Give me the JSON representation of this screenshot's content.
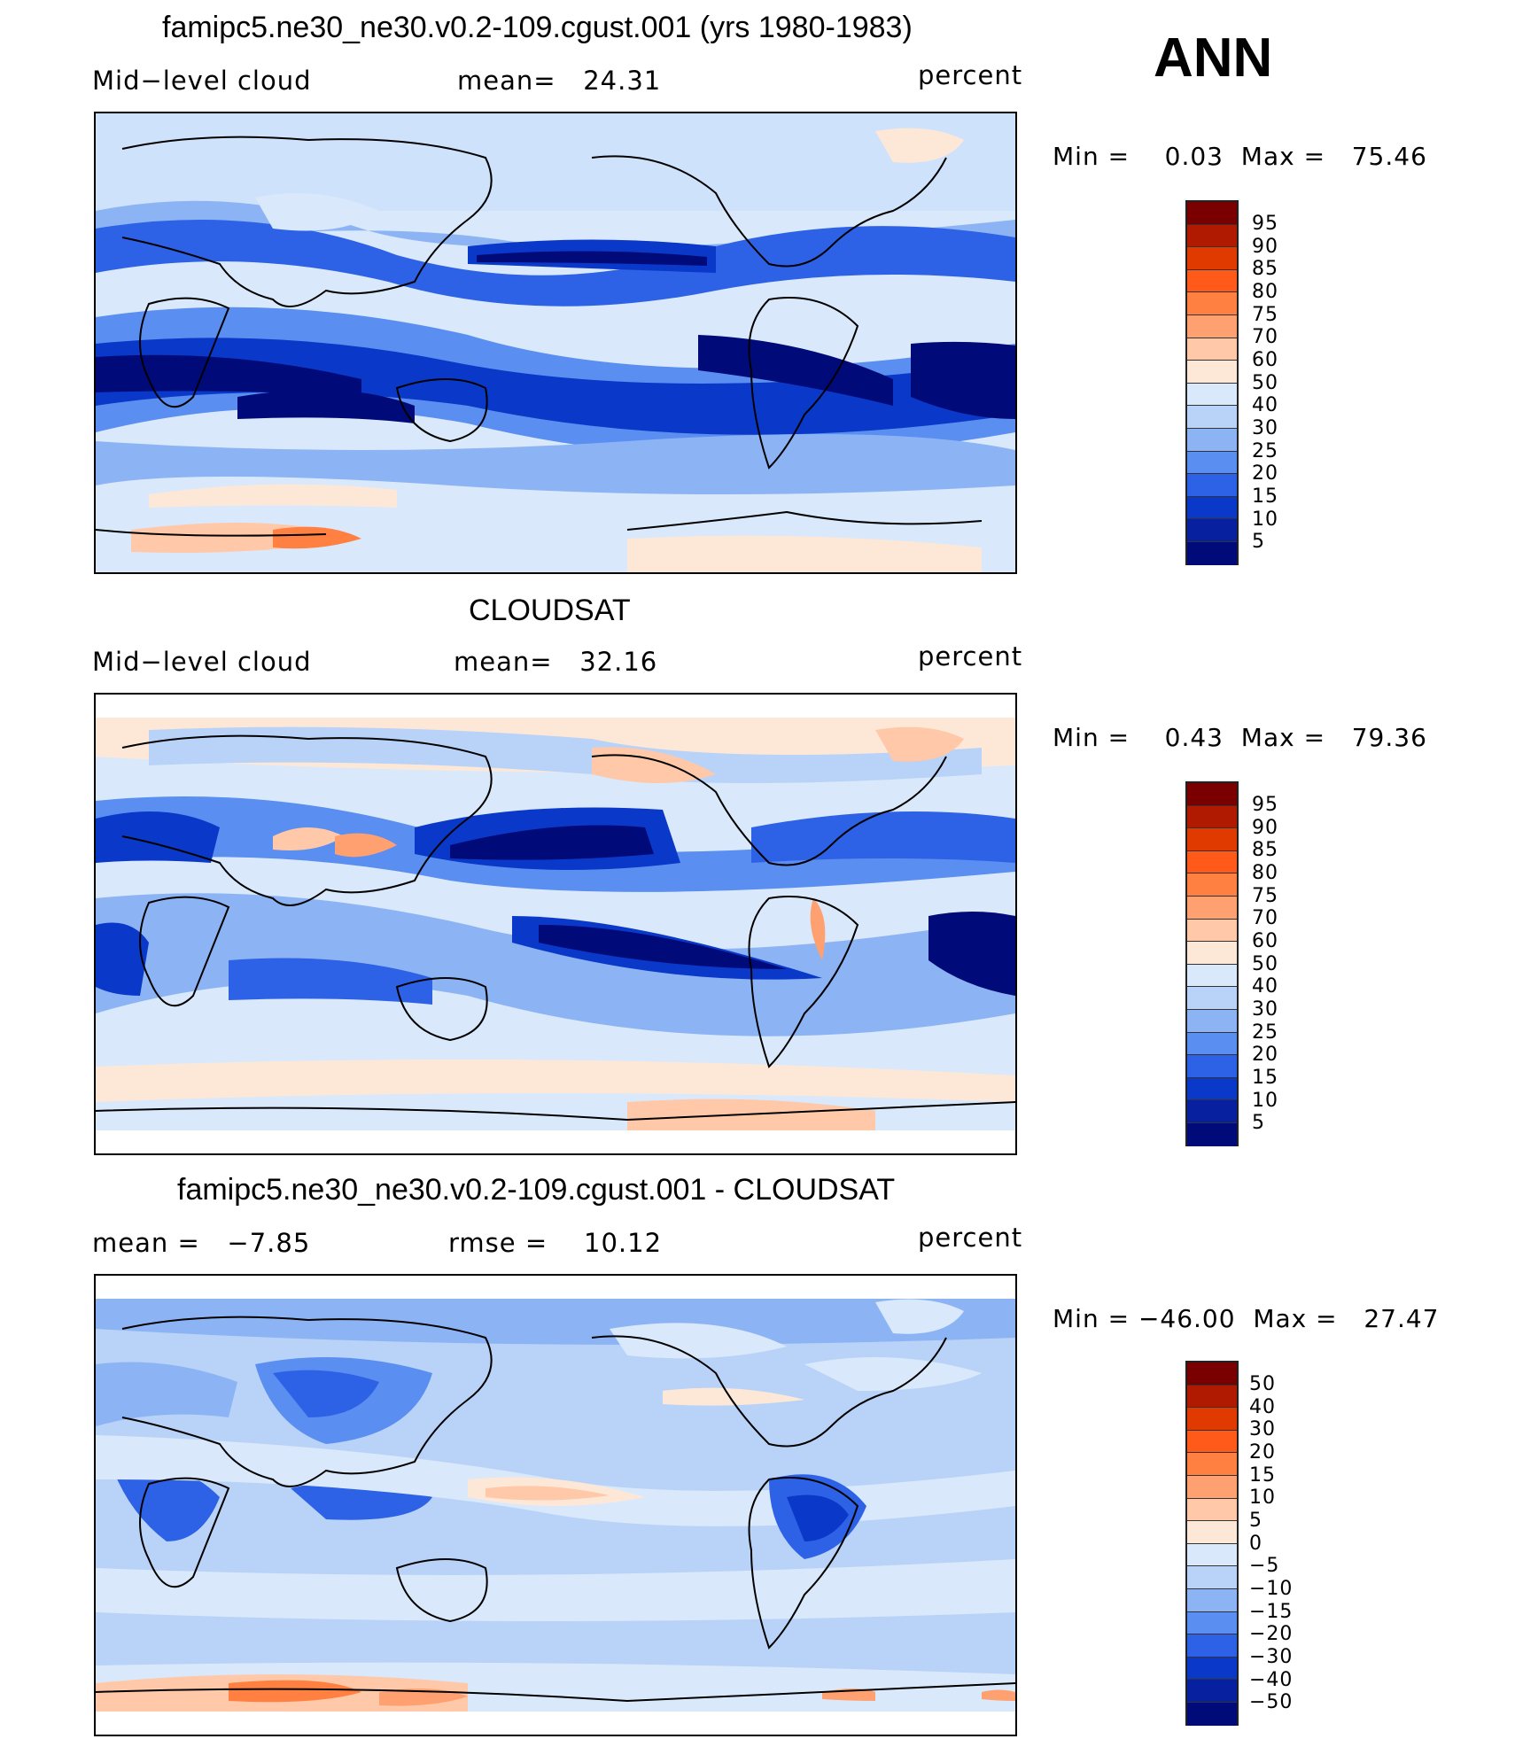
{
  "panel_top": {
    "title": "famipc5.ne30_ne30.v0.2-109.cgust.001 (yrs 1980-1983)",
    "variable": "Mid−level cloud",
    "stat": "mean=   24.31",
    "units": "percent",
    "minmax": "Min =    0.03  Max =   75.46"
  },
  "season": "ANN",
  "panel_mid": {
    "title": "CLOUDSAT",
    "variable": "Mid−level cloud",
    "stat": "mean=   32.16",
    "units": "percent",
    "minmax": "Min =    0.43  Max =   79.36"
  },
  "panel_bottom": {
    "title": "famipc5.ne30_ne30.v0.2-109.cgust.001 - CLOUDSAT",
    "stat_mean": "mean =   −7.85",
    "stat_rmse": "rmse =    10.12",
    "units": "percent",
    "minmax": "Min = −46.00  Max =   27.47"
  },
  "colorbar_abs": {
    "levels": [
      "95",
      "90",
      "85",
      "80",
      "75",
      "70",
      "60",
      "50",
      "40",
      "30",
      "25",
      "20",
      "15",
      "10",
      "5"
    ],
    "colors": [
      "#7a0000",
      "#b01a00",
      "#e03a00",
      "#ff5a1a",
      "#ff8040",
      "#ffa070",
      "#ffc8a8",
      "#fde8d8",
      "#d9e9fb",
      "#b9d3f8",
      "#8cb4f4",
      "#5a8ef0",
      "#2e62e6",
      "#0a38c8",
      "#0620a0",
      "#000a78"
    ]
  },
  "colorbar_diff": {
    "levels": [
      "50",
      "40",
      "30",
      "20",
      "15",
      "10",
      "5",
      "0",
      "−5",
      "−10",
      "−15",
      "−20",
      "−30",
      "−40",
      "−50"
    ],
    "colors": [
      "#7a0000",
      "#b01a00",
      "#e03a00",
      "#ff5a1a",
      "#ff8040",
      "#ffa070",
      "#ffc8a8",
      "#fde8d8",
      "#d9e9fb",
      "#b9d3f8",
      "#8cb4f4",
      "#5a8ef0",
      "#2e62e6",
      "#0a38c8",
      "#0620a0",
      "#000a78"
    ]
  }
}
